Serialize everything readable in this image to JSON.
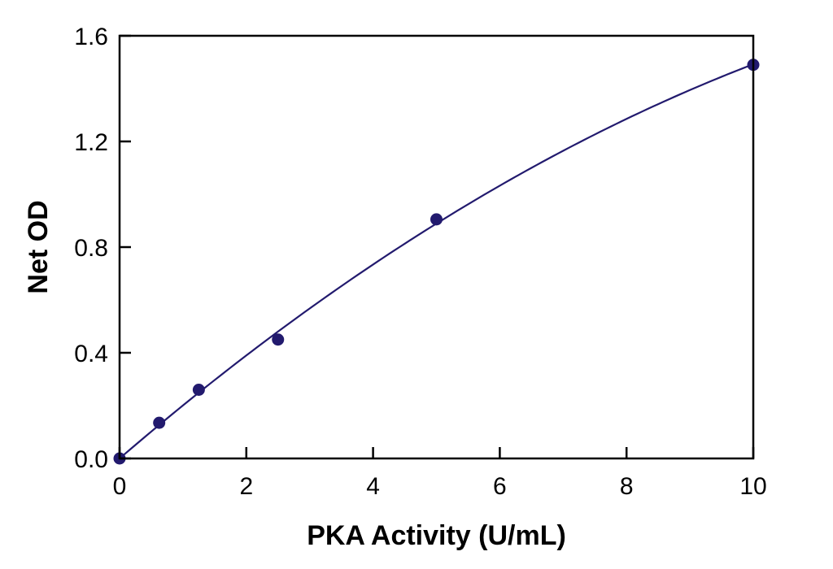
{
  "chart_data": {
    "type": "scatter",
    "title": "",
    "xlabel": "PKA Activity (U/mL)",
    "ylabel": "Net OD",
    "xlim": [
      0,
      10
    ],
    "ylim": [
      0,
      1.6
    ],
    "xticks": [
      0,
      2,
      4,
      6,
      8,
      10
    ],
    "xtick_labels": [
      "0",
      "2",
      "4",
      "6",
      "8",
      "10"
    ],
    "yticks": [
      0,
      0.4,
      0.8,
      1.2,
      1.6
    ],
    "ytick_labels": [
      "0.0",
      "0.4",
      "0.8",
      "1.2",
      "1.6"
    ],
    "grid": false,
    "legend": "none",
    "fit_curve": "smooth increasing fit through points",
    "series": [
      {
        "x": [
          0,
          0.625,
          1.25,
          2.5,
          5,
          10
        ],
        "y": [
          0.0,
          0.135,
          0.26,
          0.45,
          0.905,
          1.49
        ]
      }
    ]
  },
  "colors": {
    "marker": "#221a6e",
    "curve": "#221a6e",
    "axis": "#000000"
  }
}
